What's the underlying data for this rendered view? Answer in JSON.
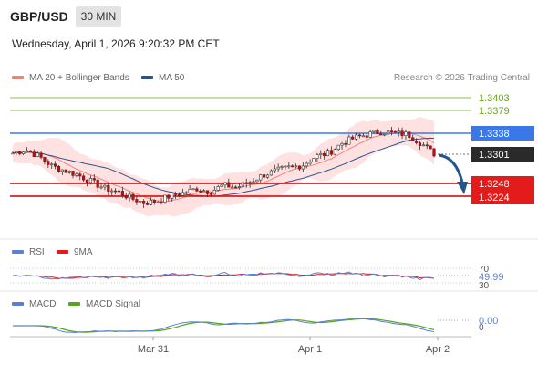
{
  "header": {
    "pair": "GBP/USD",
    "timeframe": "30 MIN",
    "timestamp": "Wednesday, April 1, 2026 9:20:32 PM CET"
  },
  "credit": "Research © 2026 Trading Central",
  "legend_main": [
    {
      "label": "MA 20 + Bollinger Bands",
      "color": "#f0857c"
    },
    {
      "label": "MA 50",
      "color": "#27548f"
    }
  ],
  "legend_rsi": [
    {
      "label": "RSI",
      "color": "#5b7fd6"
    },
    {
      "label": "9MA",
      "color": "#e31b1b"
    }
  ],
  "legend_macd": [
    {
      "label": "MACD",
      "color": "#5b7fd6"
    },
    {
      "label": "MACD Signal",
      "color": "#55a61f"
    }
  ],
  "chart_data": {
    "type": "candlestick",
    "x_ticks": [
      "Mar 31",
      "Apr 1",
      "Apr 2"
    ],
    "levels": [
      {
        "value": "1.3403",
        "kind": "resistance-target",
        "color": "#66a61e"
      },
      {
        "value": "1.3379",
        "kind": "resistance-target",
        "color": "#66a61e"
      },
      {
        "value": "1.3338",
        "kind": "pivot",
        "color": "#3a78e8"
      },
      {
        "value": "1.3301",
        "kind": "last-price",
        "color": "#2a2a2a"
      },
      {
        "value": "1.3248",
        "kind": "support-target",
        "color": "#e31b1b"
      },
      {
        "value": "1.3224",
        "kind": "support-target",
        "color": "#e31b1b"
      }
    ],
    "price_series_close": [
      1.3302,
      1.3308,
      1.3296,
      1.3278,
      1.327,
      1.3262,
      1.325,
      1.3238,
      1.3232,
      1.322,
      1.3212,
      1.3215,
      1.3225,
      1.323,
      1.3238,
      1.3232,
      1.3244,
      1.324,
      1.325,
      1.3262,
      1.327,
      1.3276,
      1.328,
      1.3296,
      1.3302,
      1.332,
      1.333,
      1.3336,
      1.3341,
      1.3338,
      1.3336,
      1.332,
      1.3301
    ],
    "rsi": {
      "current": "49.99",
      "levels": [
        "70",
        "30"
      ]
    },
    "macd": {
      "current": "0.00",
      "zero_label": "0"
    }
  }
}
